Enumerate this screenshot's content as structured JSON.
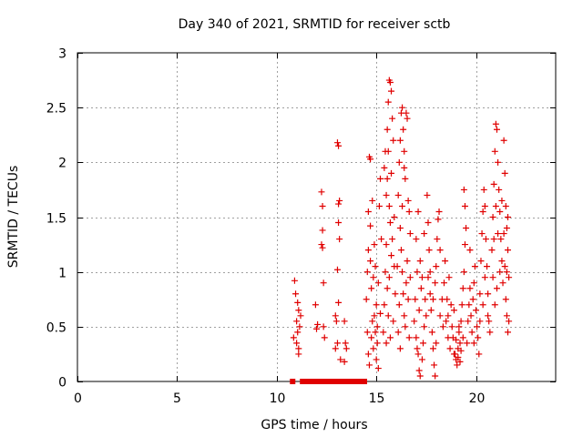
{
  "chart_data": {
    "type": "scatter",
    "title": "Day 340 of 2021, SRMTID for receiver sctb",
    "xlabel": "GPS time / hours",
    "ylabel": "SRMTID / TECUs",
    "xlim": [
      0,
      24
    ],
    "ylim": [
      0,
      3
    ],
    "xticks": [
      0,
      5,
      10,
      15,
      20
    ],
    "yticks": [
      0,
      0.5,
      1,
      1.5,
      2,
      2.5,
      3
    ],
    "ytick_labels": [
      "0",
      "0.5",
      "1",
      "1.5",
      "2",
      "2.5",
      "3"
    ],
    "grid": true,
    "marker": "+",
    "marker_color": "#e00000",
    "series": [
      {
        "name": "SRMTID",
        "points": [
          [
            10.9,
            0.92
          ],
          [
            10.95,
            0.8
          ],
          [
            11.0,
            0.55
          ],
          [
            11.05,
            0.45
          ],
          [
            11.1,
            0.65
          ],
          [
            11.0,
            0.35
          ],
          [
            11.1,
            0.3
          ],
          [
            11.15,
            0.5
          ],
          [
            10.85,
            0.4
          ],
          [
            11.05,
            0.72
          ],
          [
            11.2,
            0.6
          ],
          [
            11.1,
            0.25
          ],
          [
            11.95,
            0.7
          ],
          [
            12.05,
            0.52
          ],
          [
            12.0,
            0.48
          ],
          [
            12.25,
            1.73
          ],
          [
            12.3,
            1.6
          ],
          [
            12.3,
            1.38
          ],
          [
            12.25,
            1.25
          ],
          [
            12.3,
            1.22
          ],
          [
            12.35,
            0.9
          ],
          [
            12.35,
            0.5
          ],
          [
            12.4,
            0.4
          ],
          [
            12.95,
            0.6
          ],
          [
            13.0,
            0.55
          ],
          [
            13.05,
            1.02
          ],
          [
            13.1,
            1.45
          ],
          [
            13.1,
            1.62
          ],
          [
            13.15,
            1.65
          ],
          [
            13.05,
            2.18
          ],
          [
            13.1,
            2.15
          ],
          [
            13.15,
            1.3
          ],
          [
            13.05,
            0.35
          ],
          [
            13.2,
            0.2
          ],
          [
            13.1,
            0.72
          ],
          [
            12.95,
            0.3
          ],
          [
            13.4,
            0.55
          ],
          [
            13.45,
            0.35
          ],
          [
            13.4,
            0.18
          ],
          [
            13.5,
            0.3
          ],
          [
            14.5,
            0.75
          ],
          [
            14.55,
            1.0
          ],
          [
            14.6,
            1.2
          ],
          [
            14.6,
            1.55
          ],
          [
            14.65,
            2.05
          ],
          [
            14.7,
            2.03
          ],
          [
            14.7,
            1.42
          ],
          [
            14.75,
            0.85
          ],
          [
            14.8,
            0.55
          ],
          [
            14.75,
            0.4
          ],
          [
            14.85,
            0.3
          ],
          [
            14.9,
            0.6
          ],
          [
            14.9,
            1.25
          ],
          [
            14.95,
            0.45
          ],
          [
            15.0,
            0.7
          ],
          [
            15.0,
            0.2
          ],
          [
            15.05,
            0.35
          ],
          [
            15.1,
            0.9
          ],
          [
            15.15,
            1.6
          ],
          [
            15.2,
            1.85
          ],
          [
            15.25,
            1.3
          ],
          [
            14.6,
            0.25
          ],
          [
            14.65,
            0.15
          ],
          [
            14.55,
            0.45
          ],
          [
            14.7,
            1.1
          ],
          [
            14.8,
            1.65
          ],
          [
            14.95,
            1.05
          ],
          [
            15.05,
            0.5
          ],
          [
            15.2,
            0.62
          ],
          [
            14.85,
            0.95
          ],
          [
            15.1,
            0.12
          ],
          [
            15.4,
            1.95
          ],
          [
            15.45,
            2.1
          ],
          [
            15.5,
            1.7
          ],
          [
            15.55,
            2.3
          ],
          [
            15.6,
            2.55
          ],
          [
            15.65,
            2.75
          ],
          [
            15.7,
            2.73
          ],
          [
            15.75,
            2.65
          ],
          [
            15.8,
            2.4
          ],
          [
            15.85,
            2.2
          ],
          [
            15.6,
            2.1
          ],
          [
            15.55,
            1.85
          ],
          [
            15.65,
            1.6
          ],
          [
            15.7,
            1.45
          ],
          [
            15.5,
            1.25
          ],
          [
            15.45,
            1.0
          ],
          [
            15.55,
            0.85
          ],
          [
            15.6,
            0.6
          ],
          [
            15.75,
            1.15
          ],
          [
            15.8,
            1.3
          ],
          [
            15.9,
            1.05
          ],
          [
            15.95,
            0.8
          ],
          [
            15.85,
            0.55
          ],
          [
            15.7,
            0.4
          ],
          [
            15.4,
            0.7
          ],
          [
            15.35,
            0.45
          ],
          [
            15.75,
            1.9
          ],
          [
            15.9,
            1.5
          ],
          [
            15.65,
            0.95
          ],
          [
            15.5,
            0.35
          ],
          [
            16.1,
            1.7
          ],
          [
            16.15,
            2.0
          ],
          [
            16.2,
            2.2
          ],
          [
            16.25,
            2.45
          ],
          [
            16.3,
            2.5
          ],
          [
            16.35,
            2.3
          ],
          [
            16.4,
            2.1
          ],
          [
            16.45,
            1.85
          ],
          [
            16.5,
            2.45
          ],
          [
            16.55,
            2.4
          ],
          [
            16.6,
            1.65
          ],
          [
            16.65,
            1.55
          ],
          [
            16.7,
            1.35
          ],
          [
            16.2,
            1.4
          ],
          [
            16.25,
            1.2
          ],
          [
            16.3,
            1.0
          ],
          [
            16.35,
            0.8
          ],
          [
            16.4,
            0.6
          ],
          [
            16.15,
            0.7
          ],
          [
            16.1,
            0.45
          ],
          [
            16.45,
            0.5
          ],
          [
            16.5,
            0.9
          ],
          [
            16.55,
            1.1
          ],
          [
            16.6,
            0.75
          ],
          [
            16.7,
            0.95
          ],
          [
            16.3,
            1.6
          ],
          [
            16.4,
            1.95
          ],
          [
            16.2,
            0.3
          ],
          [
            16.05,
            1.05
          ],
          [
            16.65,
            0.4
          ],
          [
            16.9,
            0.55
          ],
          [
            17.0,
            0.4
          ],
          [
            17.05,
            0.3
          ],
          [
            17.1,
            0.25
          ],
          [
            17.15,
            0.1
          ],
          [
            17.2,
            0.05
          ],
          [
            17.3,
            0.2
          ],
          [
            17.35,
            0.35
          ],
          [
            17.4,
            0.5
          ],
          [
            17.5,
            0.6
          ],
          [
            17.55,
            1.7
          ],
          [
            17.6,
            1.45
          ],
          [
            17.65,
            1.2
          ],
          [
            17.6,
            0.95
          ],
          [
            17.7,
            0.8
          ],
          [
            17.75,
            0.65
          ],
          [
            17.8,
            0.45
          ],
          [
            17.85,
            0.3
          ],
          [
            17.9,
            0.15
          ],
          [
            17.95,
            0.05
          ],
          [
            17.85,
            0.75
          ],
          [
            17.95,
            0.9
          ],
          [
            18.0,
            1.05
          ],
          [
            18.05,
            1.3
          ],
          [
            18.1,
            1.48
          ],
          [
            18.15,
            1.55
          ],
          [
            18.2,
            1.2
          ],
          [
            17.0,
            1.3
          ],
          [
            17.1,
            1.55
          ],
          [
            17.2,
            1.1
          ],
          [
            17.25,
            0.85
          ],
          [
            16.95,
            0.75
          ],
          [
            17.05,
            1.0
          ],
          [
            17.45,
            0.75
          ],
          [
            17.3,
            0.95
          ],
          [
            18.2,
            0.6
          ],
          [
            18.0,
            0.35
          ],
          [
            17.4,
            1.35
          ],
          [
            17.15,
            0.65
          ],
          [
            17.7,
            1.0
          ],
          [
            18.3,
            0.75
          ],
          [
            18.4,
            0.9
          ],
          [
            18.45,
            1.1
          ],
          [
            18.5,
            0.55
          ],
          [
            18.6,
            0.4
          ],
          [
            18.7,
            0.3
          ],
          [
            18.8,
            0.5
          ],
          [
            18.9,
            0.65
          ],
          [
            18.95,
            0.25
          ],
          [
            19.0,
            0.2
          ],
          [
            19.05,
            0.15
          ],
          [
            19.1,
            0.3
          ],
          [
            19.15,
            0.45
          ],
          [
            19.2,
            0.35
          ],
          [
            19.25,
            0.55
          ],
          [
            19.3,
            0.7
          ],
          [
            19.35,
            0.85
          ],
          [
            19.4,
            1.0
          ],
          [
            19.45,
            1.25
          ],
          [
            19.5,
            1.4
          ],
          [
            19.45,
            1.6
          ],
          [
            19.4,
            1.75
          ],
          [
            18.35,
            0.5
          ],
          [
            18.55,
            0.75
          ],
          [
            18.65,
            0.95
          ],
          [
            18.75,
            0.7
          ],
          [
            18.85,
            0.4
          ],
          [
            18.9,
            0.25
          ],
          [
            19.0,
            0.38
          ],
          [
            19.1,
            0.22
          ],
          [
            19.2,
            0.18
          ],
          [
            19.25,
            0.28
          ],
          [
            19.35,
            0.4
          ],
          [
            18.6,
            0.6
          ],
          [
            19.15,
            0.5
          ],
          [
            19.6,
            0.55
          ],
          [
            19.65,
            0.7
          ],
          [
            19.7,
            0.85
          ],
          [
            19.75,
            0.6
          ],
          [
            19.8,
            0.45
          ],
          [
            19.85,
            0.75
          ],
          [
            19.9,
            0.9
          ],
          [
            19.95,
            1.05
          ],
          [
            20.0,
            0.65
          ],
          [
            20.05,
            0.5
          ],
          [
            20.1,
            0.4
          ],
          [
            20.15,
            0.25
          ],
          [
            20.2,
            0.8
          ],
          [
            20.25,
            1.1
          ],
          [
            20.3,
            1.35
          ],
          [
            20.35,
            1.55
          ],
          [
            20.4,
            1.75
          ],
          [
            20.45,
            1.6
          ],
          [
            20.5,
            1.3
          ],
          [
            20.55,
            1.05
          ],
          [
            20.6,
            0.8
          ],
          [
            20.65,
            0.55
          ],
          [
            20.7,
            0.45
          ],
          [
            19.55,
            0.35
          ],
          [
            19.7,
            1.2
          ],
          [
            19.9,
            0.35
          ],
          [
            20.2,
            0.55
          ],
          [
            20.45,
            0.95
          ],
          [
            20.6,
            0.6
          ],
          [
            20.35,
            0.7
          ],
          [
            20.8,
            1.2
          ],
          [
            20.85,
            1.5
          ],
          [
            20.9,
            1.8
          ],
          [
            20.95,
            2.1
          ],
          [
            21.0,
            2.35
          ],
          [
            21.05,
            2.3
          ],
          [
            21.1,
            2.0
          ],
          [
            21.15,
            1.75
          ],
          [
            21.2,
            1.55
          ],
          [
            21.25,
            1.3
          ],
          [
            21.3,
            1.1
          ],
          [
            21.35,
            0.9
          ],
          [
            21.4,
            2.2
          ],
          [
            21.45,
            1.9
          ],
          [
            21.5,
            1.6
          ],
          [
            21.55,
            1.4
          ],
          [
            21.6,
            1.2
          ],
          [
            21.65,
            0.95
          ],
          [
            21.5,
            0.75
          ],
          [
            21.55,
            0.6
          ],
          [
            21.6,
            0.45
          ],
          [
            21.65,
            0.55
          ],
          [
            20.85,
            0.95
          ],
          [
            20.95,
            0.7
          ],
          [
            21.05,
            0.85
          ],
          [
            21.2,
            1.0
          ],
          [
            21.1,
            1.35
          ],
          [
            21.3,
            1.65
          ],
          [
            21.4,
            1.35
          ],
          [
            21.45,
            1.05
          ],
          [
            21.0,
            1.6
          ],
          [
            20.9,
            1.3
          ],
          [
            21.55,
            1.0
          ],
          [
            21.6,
            1.5
          ]
        ]
      },
      {
        "name": "zero markers",
        "marker": "square",
        "points": [
          [
            10.8,
            0
          ],
          [
            11.3,
            0
          ],
          [
            11.45,
            0
          ],
          [
            11.6,
            0
          ],
          [
            11.75,
            0
          ],
          [
            11.9,
            0
          ],
          [
            12.05,
            0
          ],
          [
            12.2,
            0
          ],
          [
            12.35,
            0
          ],
          [
            12.5,
            0
          ],
          [
            12.6,
            0
          ],
          [
            12.75,
            0
          ],
          [
            12.9,
            0
          ],
          [
            13.05,
            0
          ],
          [
            13.2,
            0
          ],
          [
            13.35,
            0
          ],
          [
            13.5,
            0
          ],
          [
            13.65,
            0
          ],
          [
            13.8,
            0
          ],
          [
            13.95,
            0
          ],
          [
            14.1,
            0
          ],
          [
            14.25,
            0
          ],
          [
            14.4,
            0
          ]
        ]
      }
    ]
  }
}
